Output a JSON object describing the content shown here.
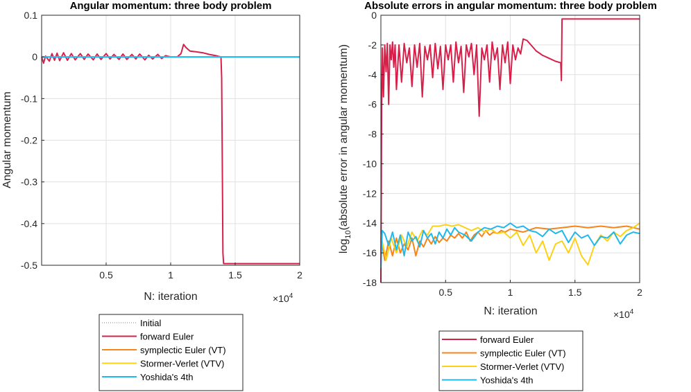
{
  "chart_data": [
    {
      "type": "line",
      "title": "Angular momentum: three body problem",
      "xlabel": "N: iteration",
      "ylabel": "Angular momentum",
      "x_exponent_label": "×10",
      "x_exponent": "4",
      "xlim": [
        0,
        20000
      ],
      "ylim": [
        -0.5,
        0.1
      ],
      "xticks": [
        5000,
        10000,
        15000,
        20000
      ],
      "xtick_labels": [
        "0.5",
        "1",
        "1.5",
        "2"
      ],
      "yticks": [
        0.1,
        0,
        -0.1,
        -0.2,
        -0.3,
        -0.4,
        -0.5
      ],
      "ytick_labels": [
        "0.1",
        "0",
        "-0.1",
        "-0.2",
        "-0.3",
        "-0.4",
        "-0.5"
      ],
      "grid": true,
      "legend_position": "below",
      "series": [
        {
          "name": "Initial",
          "color": "#7f7f7f",
          "style": "dotted",
          "x": [
            0,
            20000
          ],
          "y": [
            0,
            0
          ]
        },
        {
          "name": "forward Euler",
          "color": "#d6204a",
          "style": "solid",
          "x": [
            0,
            150,
            300,
            600,
            800,
            1000,
            1200,
            1400,
            1700,
            2000,
            2300,
            2600,
            3000,
            3300,
            3600,
            4000,
            4300,
            4600,
            5000,
            5300,
            5600,
            6000,
            6300,
            6600,
            7000,
            7300,
            7600,
            8000,
            8300,
            8600,
            9000,
            9300,
            9600,
            10000,
            10500,
            10800,
            11000,
            11200,
            11500,
            12000,
            12500,
            13000,
            13500,
            13900,
            13950,
            14000,
            14050,
            14100,
            20000
          ],
          "y": [
            0,
            -0.015,
            0.002,
            -0.01,
            0.008,
            -0.008,
            0.009,
            -0.009,
            0.01,
            -0.008,
            0.008,
            -0.007,
            0.008,
            -0.006,
            0.007,
            -0.007,
            0.007,
            -0.006,
            0.008,
            -0.005,
            0.006,
            -0.006,
            0.007,
            -0.006,
            0.006,
            -0.005,
            0.007,
            -0.007,
            0.004,
            -0.005,
            0.006,
            -0.004,
            0.003,
            0.0,
            0.0,
            0.008,
            0.03,
            0.022,
            0.014,
            0.012,
            0.01,
            0.006,
            0.003,
            0.0,
            -0.05,
            -0.25,
            -0.47,
            -0.496,
            -0.496
          ]
        },
        {
          "name": "symplectic Euler (VT)",
          "color": "#f58518",
          "style": "solid",
          "x": [
            0,
            20000
          ],
          "y": [
            0,
            0
          ]
        },
        {
          "name": "Stormer-Verlet (VTV)",
          "color": "#fcd116",
          "style": "solid",
          "x": [
            0,
            20000
          ],
          "y": [
            0,
            0
          ]
        },
        {
          "name": "Yoshida's 4th",
          "color": "#1fb8ec",
          "style": "solid",
          "x": [
            0,
            20000
          ],
          "y": [
            0,
            0
          ]
        }
      ]
    },
    {
      "type": "line",
      "title": "Absolute errors in angular momentum: three body problem",
      "xlabel": "N: iteration",
      "ylabel_prefix": "log",
      "ylabel_sub": "10",
      "ylabel_suffix": "(absolute error in angular momentum)",
      "x_exponent_label": "×10",
      "x_exponent": "4",
      "xlim": [
        0,
        20000
      ],
      "ylim": [
        -18,
        0
      ],
      "xticks": [
        5000,
        10000,
        15000,
        20000
      ],
      "xtick_labels": [
        "0.5",
        "1",
        "1.5",
        "2"
      ],
      "yticks": [
        0,
        -2,
        -4,
        -6,
        -8,
        -10,
        -12,
        -14,
        -16,
        -18
      ],
      "ytick_labels": [
        "0",
        "-2",
        "-4",
        "-6",
        "-8",
        "-10",
        "-12",
        "-14",
        "-16",
        "-18"
      ],
      "grid": true,
      "legend_position": "below",
      "series": [
        {
          "name": "forward Euler",
          "color": "#d6204a",
          "style": "solid",
          "x": [
            0,
            60,
            120,
            200,
            300,
            400,
            500,
            600,
            700,
            800,
            900,
            1000,
            1100,
            1200,
            1400,
            1600,
            1800,
            2000,
            2200,
            2400,
            2600,
            2800,
            3000,
            3200,
            3400,
            3600,
            3800,
            4000,
            4200,
            4400,
            4600,
            4800,
            5000,
            5200,
            5400,
            5600,
            5800,
            6000,
            6200,
            6400,
            6600,
            6800,
            7000,
            7200,
            7400,
            7600,
            7800,
            8000,
            8200,
            8400,
            8600,
            8800,
            9000,
            9200,
            9400,
            9600,
            9800,
            10000,
            10200,
            10400,
            10600,
            10800,
            11000,
            11300,
            11600,
            12000,
            12500,
            13000,
            13500,
            13900,
            13950,
            14000,
            14100,
            20000
          ],
          "y": [
            -18,
            -6.0,
            -2.2,
            -5.5,
            -2.0,
            -3.8,
            -1.9,
            -6.0,
            -2.0,
            -3.0,
            -1.8,
            -3.5,
            -2.0,
            -5.0,
            -2.0,
            -4.5,
            -1.9,
            -3.2,
            -2.2,
            -4.8,
            -2.0,
            -3.5,
            -1.9,
            -5.5,
            -2.1,
            -3.0,
            -2.0,
            -4.2,
            -1.9,
            -3.6,
            -2.1,
            -5.0,
            -2.0,
            -3.0,
            -2.0,
            -4.5,
            -1.8,
            -3.2,
            -2.1,
            -5.2,
            -2.0,
            -2.8,
            -1.9,
            -4.0,
            -2.0,
            -6.8,
            -2.2,
            -3.0,
            -2.0,
            -4.5,
            -1.8,
            -3.0,
            -2.2,
            -5.0,
            -2.0,
            -3.2,
            -1.8,
            -4.6,
            -2.0,
            -3.0,
            -2.2,
            -2.6,
            -1.6,
            -1.7,
            -2.0,
            -2.4,
            -2.7,
            -2.9,
            -3.1,
            -3.2,
            -4.4,
            -0.25,
            -0.25,
            -0.25
          ]
        },
        {
          "name": "symplectic Euler (VT)",
          "color": "#f58518",
          "style": "solid",
          "x": [
            0,
            300,
            600,
            900,
            1200,
            1500,
            1800,
            2100,
            2400,
            2700,
            3000,
            3300,
            3600,
            3900,
            4200,
            4500,
            4800,
            5100,
            5400,
            5700,
            6000,
            6300,
            6600,
            6900,
            7200,
            7500,
            7800,
            8100,
            8400,
            8700,
            9000,
            9300,
            9600,
            10000,
            11000,
            12000,
            13000,
            14000,
            15000,
            16000,
            17000,
            18000,
            19000,
            20000
          ],
          "y": [
            -15.0,
            -16.5,
            -15.2,
            -16.2,
            -15.0,
            -16.0,
            -15.4,
            -15.8,
            -15.0,
            -16.2,
            -15.2,
            -15.6,
            -15.0,
            -15.4,
            -14.9,
            -15.3,
            -15.0,
            -15.2,
            -14.8,
            -15.0,
            -14.7,
            -15.0,
            -14.6,
            -15.2,
            -14.8,
            -14.6,
            -14.9,
            -14.5,
            -14.8,
            -14.6,
            -14.7,
            -14.5,
            -14.6,
            -14.4,
            -14.6,
            -14.3,
            -14.4,
            -14.3,
            -14.2,
            -14.3,
            -14.2,
            -14.3,
            -14.2,
            -14.4
          ]
        },
        {
          "name": "Stormer-Verlet (VTV)",
          "color": "#fcd116",
          "style": "solid",
          "x": [
            0,
            400,
            800,
            1200,
            1600,
            2000,
            2400,
            2800,
            3200,
            3600,
            4000,
            4500,
            5000,
            5500,
            6000,
            6500,
            7000,
            7500,
            8000,
            8500,
            9000,
            9500,
            10000,
            10500,
            11000,
            11500,
            12000,
            12500,
            13000,
            13500,
            14000,
            14500,
            15000,
            15500,
            16000,
            16500,
            17000,
            17500,
            18000,
            18500,
            19000,
            19500,
            20000
          ],
          "y": [
            -14.8,
            -16.5,
            -15.0,
            -16.0,
            -14.8,
            -15.6,
            -14.6,
            -15.2,
            -14.5,
            -14.8,
            -14.2,
            -14.2,
            -14.1,
            -14.2,
            -14.1,
            -14.3,
            -14.5,
            -14.3,
            -14.6,
            -14.4,
            -14.7,
            -14.6,
            -15.0,
            -14.6,
            -15.5,
            -14.8,
            -16.0,
            -15.2,
            -16.5,
            -15.4,
            -15.2,
            -16.0,
            -15.0,
            -16.2,
            -16.8,
            -15.5,
            -14.8,
            -15.2,
            -14.6,
            -14.9,
            -14.5,
            -14.3,
            -14.0
          ]
        },
        {
          "name": "Yoshida's 4th",
          "color": "#1fb8ec",
          "style": "solid",
          "x": [
            0,
            100,
            300,
            600,
            900,
            1200,
            1500,
            1800,
            2100,
            2400,
            2700,
            3000,
            3300,
            3600,
            3900,
            4200,
            4500,
            4800,
            5100,
            5400,
            5700,
            6000,
            6500,
            7000,
            7500,
            8000,
            8500,
            9000,
            9500,
            10000,
            10500,
            11000,
            11500,
            12000,
            12500,
            13000,
            13500,
            14000,
            14500,
            15000,
            15500,
            16000,
            16500,
            17000,
            17500,
            18000,
            18500,
            19000,
            19500,
            20000
          ],
          "y": [
            -17.0,
            -14.5,
            -14.7,
            -15.5,
            -14.6,
            -15.8,
            -14.8,
            -16.2,
            -14.6,
            -15.2,
            -14.9,
            -15.6,
            -14.5,
            -15.0,
            -14.7,
            -15.4,
            -14.6,
            -15.0,
            -14.4,
            -14.8,
            -14.3,
            -14.6,
            -14.8,
            -15.2,
            -14.6,
            -14.3,
            -14.4,
            -14.2,
            -14.3,
            -14.0,
            -14.3,
            -14.2,
            -14.5,
            -14.6,
            -14.9,
            -14.4,
            -14.7,
            -14.5,
            -15.3,
            -14.6,
            -15.0,
            -14.8,
            -15.5,
            -14.9,
            -15.0,
            -14.6,
            -15.4,
            -14.8,
            -14.6,
            -14.7
          ]
        }
      ]
    }
  ],
  "legends": [
    {
      "entries": [
        "Initial",
        "forward Euler",
        "symplectic Euler (VT)",
        "Stormer-Verlet (VTV)",
        "Yoshida's 4th"
      ]
    },
    {
      "entries": [
        "forward Euler",
        "symplectic Euler (VT)",
        "Stormer-Verlet (VTV)",
        "Yoshida's 4th"
      ]
    }
  ]
}
